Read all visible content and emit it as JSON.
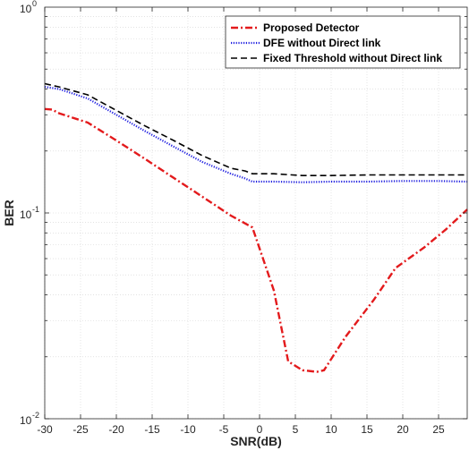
{
  "chart_data": {
    "type": "line",
    "xlabel": "SNR(dB)",
    "ylabel": "BER",
    "xlim": [
      -30,
      29
    ],
    "ylim": [
      0.01,
      1
    ],
    "yscale": "log",
    "grid": true,
    "legend_position": "top-right",
    "xticks": [
      -30,
      -25,
      -20,
      -15,
      -10,
      -5,
      0,
      5,
      10,
      15,
      20,
      25
    ],
    "xtick_labels": [
      "-30",
      "-25",
      "-20",
      "-15",
      "-10",
      "-5",
      "0",
      "5",
      "10",
      "15",
      "20",
      "25"
    ],
    "yticks": [
      0.01,
      0.1,
      1
    ],
    "ytick_labels": [
      {
        "base": "10",
        "exp": "-2"
      },
      {
        "base": "10",
        "exp": "-1"
      },
      {
        "base": "10",
        "exp": "0"
      }
    ],
    "series": [
      {
        "name": "Proposed Detector",
        "color": "#e31a1c",
        "dash": "dash-dot",
        "x": [
          -30,
          -29,
          -28,
          -24,
          -20,
          -16,
          -12,
          -8,
          -4,
          -1,
          2,
          4,
          6,
          8,
          9,
          12,
          16,
          19,
          23,
          26,
          29
        ],
        "y": [
          0.32,
          0.318,
          0.305,
          0.275,
          0.225,
          0.183,
          0.148,
          0.12,
          0.097,
          0.085,
          0.042,
          0.019,
          0.0172,
          0.0169,
          0.0172,
          0.025,
          0.038,
          0.054,
          0.068,
          0.083,
          0.104
        ]
      },
      {
        "name": "DFE without Direct link",
        "color": "#1f1fe0",
        "dash": "dotted",
        "x": [
          -30,
          -28,
          -24,
          -20,
          -16,
          -12,
          -8,
          -4,
          -2,
          -1,
          2,
          6,
          10,
          15,
          20,
          25,
          29
        ],
        "y": [
          0.41,
          0.4,
          0.36,
          0.3,
          0.25,
          0.21,
          0.177,
          0.155,
          0.147,
          0.142,
          0.142,
          0.141,
          0.142,
          0.142,
          0.143,
          0.143,
          0.142
        ]
      },
      {
        "name": "Fixed Threshold without Direct link",
        "color": "#000000",
        "dash": "dashed",
        "x": [
          -30,
          -28,
          -24,
          -20,
          -16,
          -12,
          -8,
          -4,
          -2,
          -1,
          2,
          6,
          10,
          15,
          20,
          25,
          29
        ],
        "y": [
          0.425,
          0.41,
          0.375,
          0.315,
          0.265,
          0.225,
          0.19,
          0.165,
          0.16,
          0.155,
          0.155,
          0.152,
          0.152,
          0.153,
          0.153,
          0.153,
          0.153
        ]
      }
    ]
  }
}
